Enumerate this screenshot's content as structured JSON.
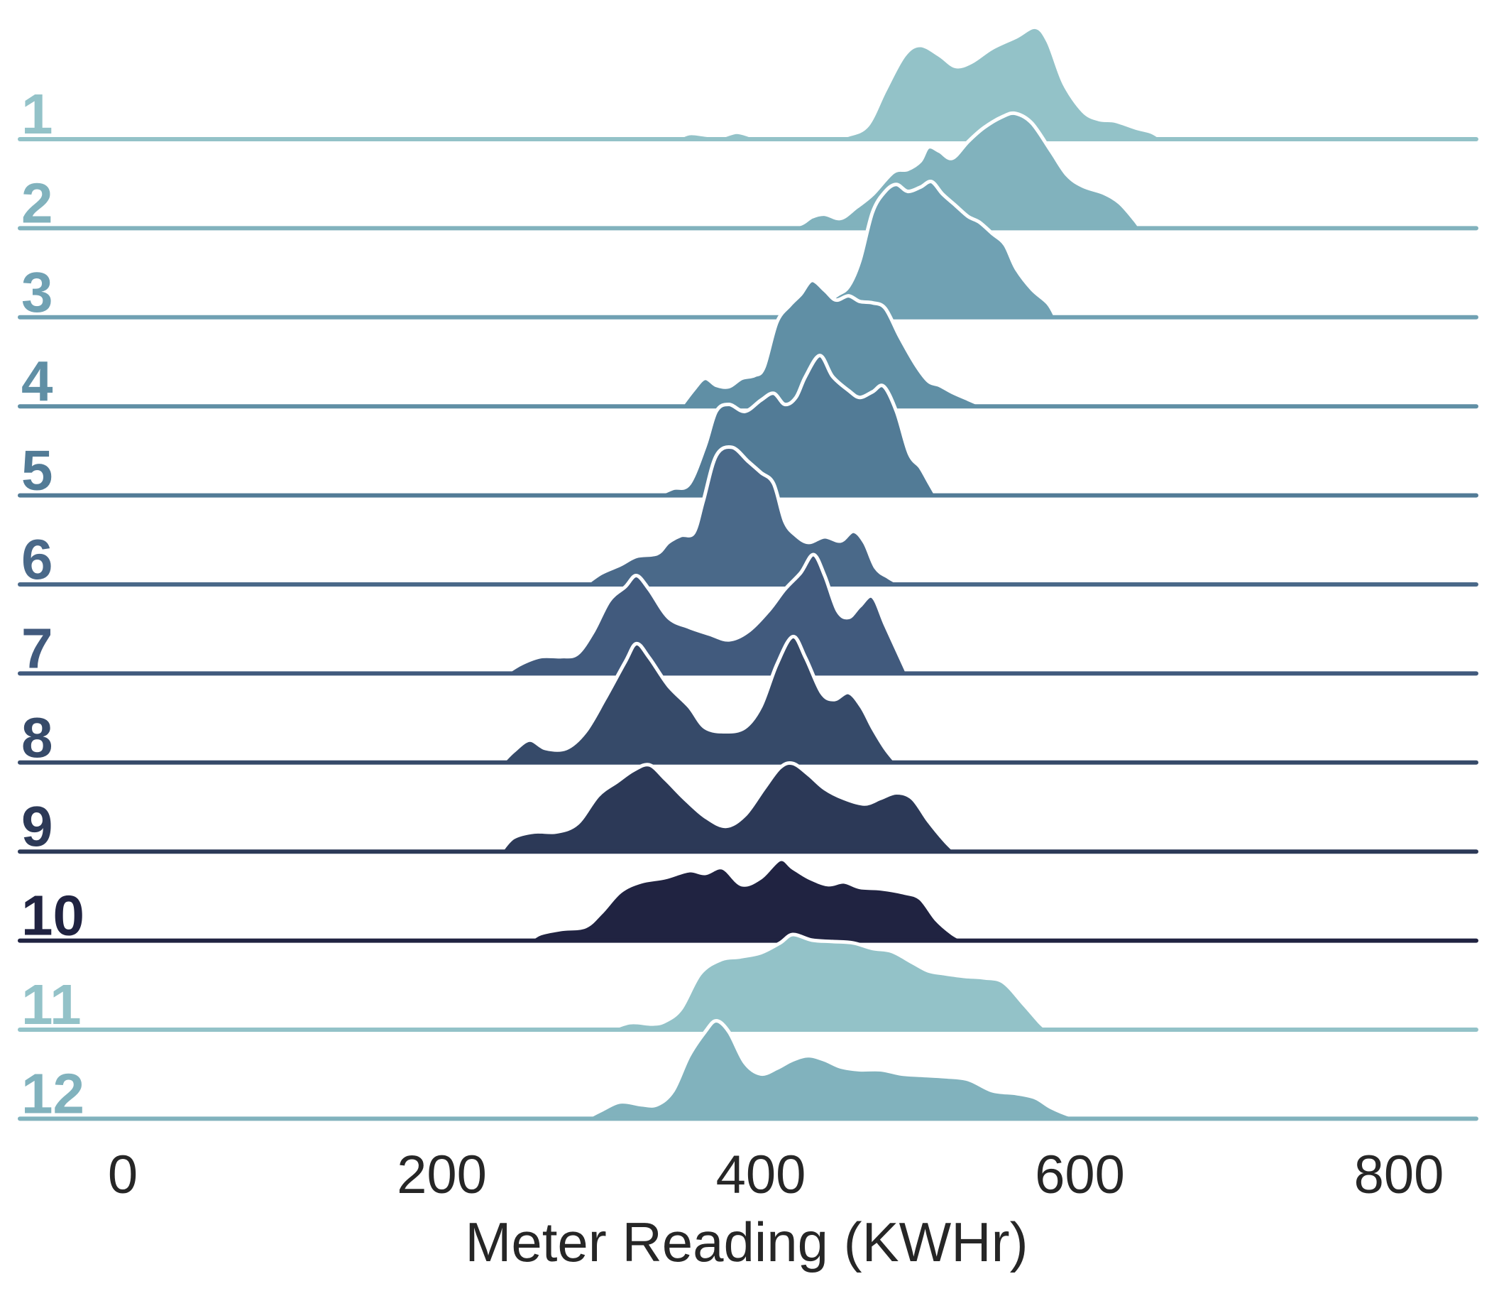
{
  "chart_data": {
    "type": "area",
    "title": "",
    "xlabel": "Meter Reading (KWHr)",
    "ylabel": "",
    "xlim": [
      -32,
      852
    ],
    "xticks": [
      0,
      200,
      400,
      600,
      800
    ],
    "tick_labels": [
      "0",
      "200",
      "400",
      "600",
      "800"
    ],
    "grid": false,
    "legend": "none",
    "series": [
      {
        "name": "1",
        "color": "#93c2c8",
        "points": [
          [
            347,
            0
          ],
          [
            355,
            0.04
          ],
          [
            365,
            0.03
          ],
          [
            375,
            0.02
          ],
          [
            385,
            0.05
          ],
          [
            395,
            0.02
          ],
          [
            404,
            0
          ],
          [
            435,
            0
          ],
          [
            445,
            0.02
          ],
          [
            455,
            0.03
          ],
          [
            467,
            0.1
          ],
          [
            478,
            0.35
          ],
          [
            490,
            0.6
          ],
          [
            500,
            0.67
          ],
          [
            512,
            0.6
          ],
          [
            522,
            0.52
          ],
          [
            532,
            0.55
          ],
          [
            545,
            0.65
          ],
          [
            560,
            0.73
          ],
          [
            572,
            0.8
          ],
          [
            580,
            0.7
          ],
          [
            590,
            0.4
          ],
          [
            602,
            0.2
          ],
          [
            612,
            0.14
          ],
          [
            622,
            0.13
          ],
          [
            635,
            0.08
          ],
          [
            645,
            0.05
          ],
          [
            652,
            0
          ]
        ]
      },
      {
        "name": "2",
        "color": "#81b2bd",
        "points": [
          [
            412,
            0
          ],
          [
            425,
            0.03
          ],
          [
            432,
            0.08
          ],
          [
            440,
            0.1
          ],
          [
            450,
            0.07
          ],
          [
            460,
            0.15
          ],
          [
            470,
            0.24
          ],
          [
            483,
            0.4
          ],
          [
            492,
            0.42
          ],
          [
            500,
            0.48
          ],
          [
            505,
            0.58
          ],
          [
            512,
            0.55
          ],
          [
            520,
            0.5
          ],
          [
            530,
            0.62
          ],
          [
            540,
            0.72
          ],
          [
            552,
            0.8
          ],
          [
            560,
            0.82
          ],
          [
            570,
            0.75
          ],
          [
            582,
            0.55
          ],
          [
            592,
            0.38
          ],
          [
            602,
            0.3
          ],
          [
            615,
            0.25
          ],
          [
            625,
            0.18
          ],
          [
            635,
            0.05
          ],
          [
            638,
            0
          ]
        ]
      },
      {
        "name": "3",
        "color": "#70a1b3",
        "points": [
          [
            413,
            0
          ],
          [
            430,
            0.05
          ],
          [
            440,
            0.1
          ],
          [
            448,
            0.16
          ],
          [
            455,
            0.22
          ],
          [
            462,
            0.4
          ],
          [
            470,
            0.75
          ],
          [
            478,
            0.9
          ],
          [
            485,
            0.95
          ],
          [
            492,
            0.9
          ],
          [
            500,
            0.93
          ],
          [
            507,
            0.97
          ],
          [
            514,
            0.88
          ],
          [
            522,
            0.8
          ],
          [
            530,
            0.72
          ],
          [
            537,
            0.68
          ],
          [
            545,
            0.6
          ],
          [
            553,
            0.52
          ],
          [
            560,
            0.35
          ],
          [
            570,
            0.2
          ],
          [
            580,
            0.1
          ],
          [
            585,
            0
          ]
        ]
      },
      {
        "name": "4",
        "color": "#608fa5",
        "points": [
          [
            350,
            0
          ],
          [
            358,
            0.12
          ],
          [
            365,
            0.2
          ],
          [
            372,
            0.15
          ],
          [
            380,
            0.14
          ],
          [
            388,
            0.2
          ],
          [
            396,
            0.22
          ],
          [
            402,
            0.28
          ],
          [
            410,
            0.6
          ],
          [
            418,
            0.72
          ],
          [
            425,
            0.8
          ],
          [
            432,
            0.9
          ],
          [
            440,
            0.83
          ],
          [
            447,
            0.76
          ],
          [
            455,
            0.79
          ],
          [
            462,
            0.75
          ],
          [
            470,
            0.74
          ],
          [
            478,
            0.7
          ],
          [
            487,
            0.5
          ],
          [
            497,
            0.3
          ],
          [
            505,
            0.18
          ],
          [
            512,
            0.15
          ],
          [
            520,
            0.1
          ],
          [
            530,
            0.05
          ],
          [
            540,
            0
          ]
        ]
      },
      {
        "name": "5",
        "color": "#527b96",
        "points": [
          [
            335,
            0
          ],
          [
            345,
            0.05
          ],
          [
            355,
            0.08
          ],
          [
            365,
            0.35
          ],
          [
            372,
            0.6
          ],
          [
            380,
            0.65
          ],
          [
            390,
            0.6
          ],
          [
            400,
            0.68
          ],
          [
            408,
            0.73
          ],
          [
            415,
            0.65
          ],
          [
            422,
            0.7
          ],
          [
            428,
            0.85
          ],
          [
            437,
            1.0
          ],
          [
            445,
            0.85
          ],
          [
            455,
            0.75
          ],
          [
            462,
            0.7
          ],
          [
            470,
            0.74
          ],
          [
            477,
            0.78
          ],
          [
            485,
            0.6
          ],
          [
            493,
            0.3
          ],
          [
            500,
            0.2
          ],
          [
            505,
            0.1
          ],
          [
            510,
            0
          ]
        ]
      },
      {
        "name": "6",
        "color": "#4a6989",
        "points": [
          [
            290,
            0
          ],
          [
            300,
            0.08
          ],
          [
            312,
            0.14
          ],
          [
            322,
            0.2
          ],
          [
            335,
            0.22
          ],
          [
            342,
            0.3
          ],
          [
            350,
            0.35
          ],
          [
            358,
            0.37
          ],
          [
            364,
            0.6
          ],
          [
            372,
            0.92
          ],
          [
            382,
            0.98
          ],
          [
            392,
            0.88
          ],
          [
            400,
            0.8
          ],
          [
            408,
            0.72
          ],
          [
            415,
            0.45
          ],
          [
            422,
            0.35
          ],
          [
            430,
            0.3
          ],
          [
            440,
            0.34
          ],
          [
            450,
            0.31
          ],
          [
            458,
            0.38
          ],
          [
            465,
            0.3
          ],
          [
            472,
            0.12
          ],
          [
            480,
            0.05
          ],
          [
            488,
            0
          ]
        ]
      },
      {
        "name": "7",
        "color": "#415a7d",
        "points": [
          [
            240,
            0
          ],
          [
            250,
            0.07
          ],
          [
            262,
            0.12
          ],
          [
            275,
            0.12
          ],
          [
            285,
            0.14
          ],
          [
            295,
            0.3
          ],
          [
            305,
            0.52
          ],
          [
            315,
            0.62
          ],
          [
            322,
            0.7
          ],
          [
            330,
            0.6
          ],
          [
            342,
            0.4
          ],
          [
            355,
            0.33
          ],
          [
            368,
            0.28
          ],
          [
            380,
            0.24
          ],
          [
            392,
            0.3
          ],
          [
            405,
            0.45
          ],
          [
            415,
            0.6
          ],
          [
            425,
            0.72
          ],
          [
            433,
            0.85
          ],
          [
            440,
            0.7
          ],
          [
            448,
            0.45
          ],
          [
            455,
            0.4
          ],
          [
            462,
            0.48
          ],
          [
            470,
            0.55
          ],
          [
            478,
            0.35
          ],
          [
            488,
            0.1
          ],
          [
            492,
            0
          ]
        ]
      },
      {
        "name": "8",
        "color": "#364a69",
        "points": [
          [
            238,
            0
          ],
          [
            245,
            0.08
          ],
          [
            255,
            0.16
          ],
          [
            265,
            0.1
          ],
          [
            278,
            0.1
          ],
          [
            290,
            0.22
          ],
          [
            302,
            0.45
          ],
          [
            315,
            0.72
          ],
          [
            322,
            0.85
          ],
          [
            330,
            0.75
          ],
          [
            342,
            0.55
          ],
          [
            355,
            0.4
          ],
          [
            365,
            0.25
          ],
          [
            378,
            0.22
          ],
          [
            390,
            0.25
          ],
          [
            400,
            0.4
          ],
          [
            410,
            0.7
          ],
          [
            420,
            0.9
          ],
          [
            428,
            0.75
          ],
          [
            438,
            0.5
          ],
          [
            446,
            0.45
          ],
          [
            455,
            0.5
          ],
          [
            463,
            0.4
          ],
          [
            470,
            0.25
          ],
          [
            478,
            0.1
          ],
          [
            485,
            0
          ]
        ]
      },
      {
        "name": "9",
        "color": "#2c3957",
        "points": [
          [
            237,
            0
          ],
          [
            245,
            0.1
          ],
          [
            258,
            0.14
          ],
          [
            272,
            0.14
          ],
          [
            285,
            0.2
          ],
          [
            298,
            0.4
          ],
          [
            310,
            0.5
          ],
          [
            320,
            0.58
          ],
          [
            330,
            0.62
          ],
          [
            340,
            0.52
          ],
          [
            352,
            0.38
          ],
          [
            365,
            0.25
          ],
          [
            378,
            0.18
          ],
          [
            390,
            0.26
          ],
          [
            402,
            0.45
          ],
          [
            412,
            0.6
          ],
          [
            420,
            0.63
          ],
          [
            430,
            0.55
          ],
          [
            440,
            0.45
          ],
          [
            452,
            0.38
          ],
          [
            465,
            0.34
          ],
          [
            475,
            0.38
          ],
          [
            485,
            0.42
          ],
          [
            495,
            0.38
          ],
          [
            505,
            0.22
          ],
          [
            515,
            0.08
          ],
          [
            522,
            0
          ]
        ]
      },
      {
        "name": "10",
        "color": "#202341",
        "points": [
          [
            255,
            0
          ],
          [
            262,
            0.05
          ],
          [
            275,
            0.08
          ],
          [
            290,
            0.1
          ],
          [
            300,
            0.2
          ],
          [
            312,
            0.35
          ],
          [
            325,
            0.42
          ],
          [
            340,
            0.45
          ],
          [
            355,
            0.5
          ],
          [
            365,
            0.48
          ],
          [
            376,
            0.52
          ],
          [
            388,
            0.4
          ],
          [
            400,
            0.45
          ],
          [
            412,
            0.58
          ],
          [
            420,
            0.52
          ],
          [
            430,
            0.45
          ],
          [
            442,
            0.4
          ],
          [
            452,
            0.42
          ],
          [
            462,
            0.38
          ],
          [
            475,
            0.37
          ],
          [
            490,
            0.34
          ],
          [
            500,
            0.3
          ],
          [
            510,
            0.15
          ],
          [
            520,
            0.05
          ],
          [
            528,
            0
          ]
        ]
      },
      {
        "name": "11",
        "color": "#93c2c8",
        "points": [
          [
            305,
            0
          ],
          [
            318,
            0.05
          ],
          [
            332,
            0.04
          ],
          [
            340,
            0.06
          ],
          [
            350,
            0.15
          ],
          [
            362,
            0.4
          ],
          [
            375,
            0.5
          ],
          [
            387,
            0.52
          ],
          [
            400,
            0.55
          ],
          [
            412,
            0.62
          ],
          [
            420,
            0.68
          ],
          [
            432,
            0.64
          ],
          [
            445,
            0.63
          ],
          [
            458,
            0.62
          ],
          [
            470,
            0.58
          ],
          [
            482,
            0.56
          ],
          [
            495,
            0.48
          ],
          [
            505,
            0.42
          ],
          [
            515,
            0.4
          ],
          [
            528,
            0.38
          ],
          [
            540,
            0.37
          ],
          [
            552,
            0.34
          ],
          [
            565,
            0.18
          ],
          [
            575,
            0.05
          ],
          [
            580,
            0
          ]
        ]
      },
      {
        "name": "12",
        "color": "#81b2bd",
        "points": [
          [
            290,
            0
          ],
          [
            300,
            0.06
          ],
          [
            312,
            0.12
          ],
          [
            325,
            0.1
          ],
          [
            335,
            0.1
          ],
          [
            345,
            0.2
          ],
          [
            355,
            0.45
          ],
          [
            365,
            0.62
          ],
          [
            372,
            0.7
          ],
          [
            380,
            0.62
          ],
          [
            390,
            0.4
          ],
          [
            400,
            0.32
          ],
          [
            410,
            0.36
          ],
          [
            420,
            0.42
          ],
          [
            430,
            0.45
          ],
          [
            440,
            0.42
          ],
          [
            450,
            0.37
          ],
          [
            462,
            0.35
          ],
          [
            475,
            0.35
          ],
          [
            488,
            0.32
          ],
          [
            500,
            0.31
          ],
          [
            515,
            0.3
          ],
          [
            530,
            0.28
          ],
          [
            545,
            0.2
          ],
          [
            560,
            0.18
          ],
          [
            572,
            0.15
          ],
          [
            582,
            0.08
          ],
          [
            595,
            0.02
          ],
          [
            605,
            0
          ]
        ]
      }
    ]
  }
}
